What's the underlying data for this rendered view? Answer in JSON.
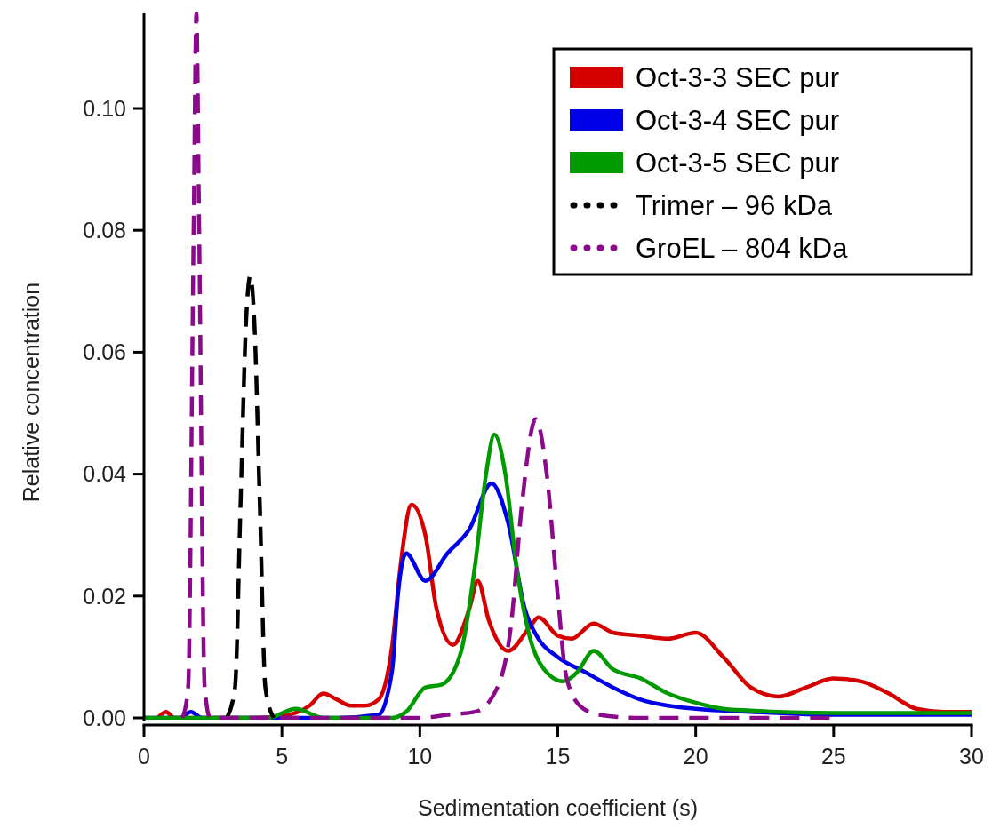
{
  "chart_data": {
    "type": "line",
    "xlabel": "Sedimentation coefficient (s)",
    "ylabel": "Relative concentration",
    "xlim": [
      0,
      30
    ],
    "ylim": [
      0,
      0.1156
    ],
    "xticks": [
      0,
      5,
      10,
      15,
      20,
      25,
      30
    ],
    "yticks": [
      {
        "value": 0,
        "label": "0.00"
      },
      {
        "value": 0.02,
        "label": "0.02"
      },
      {
        "value": 0.04,
        "label": "0.04"
      },
      {
        "value": 0.06,
        "label": "0.06"
      },
      {
        "value": 0.08,
        "label": "0.08"
      },
      {
        "value": 0.1,
        "label": "0.10"
      }
    ],
    "grid": false,
    "legend": "top right",
    "series": [
      {
        "name": "Oct-3-3 SEC pur",
        "color": "#d40000",
        "line_style": "solid",
        "x": [
          0.5,
          0.8,
          1.1,
          2,
          3,
          4,
          5,
          6,
          6.5,
          7,
          7.5,
          8,
          8.5,
          9,
          9.3,
          9.7,
          10.2,
          10.6,
          11.2,
          11.8,
          12.1,
          12.5,
          13.2,
          14,
          14.3,
          15,
          15.5,
          16.3,
          17,
          18,
          19,
          20,
          21,
          22,
          23,
          24,
          25,
          26,
          27,
          28,
          29,
          30
        ],
        "values": [
          0,
          0.001,
          0,
          0,
          0,
          0,
          0.0003,
          0.002,
          0.004,
          0.003,
          0.002,
          0.002,
          0.003,
          0.012,
          0.025,
          0.035,
          0.03,
          0.018,
          0.012,
          0.018,
          0.0225,
          0.016,
          0.011,
          0.015,
          0.0165,
          0.0135,
          0.013,
          0.0155,
          0.014,
          0.0135,
          0.013,
          0.014,
          0.01,
          0.005,
          0.0035,
          0.005,
          0.0065,
          0.006,
          0.004,
          0.0015,
          0.001,
          0.001
        ]
      },
      {
        "name": "Oct-3-4 SEC pur",
        "color": "#0000e6",
        "line_style": "solid",
        "x": [
          0,
          1.3,
          1.7,
          2.1,
          3,
          5,
          7,
          8.5,
          9,
          9.2,
          9.5,
          10.2,
          11,
          11.8,
          12.6,
          13.2,
          13.8,
          14.3,
          15,
          16,
          17,
          18,
          19,
          20,
          22,
          25,
          30
        ],
        "values": [
          0,
          0,
          0.001,
          0,
          0,
          0,
          0,
          0.0005,
          0.008,
          0.02,
          0.027,
          0.0225,
          0.027,
          0.031,
          0.0385,
          0.032,
          0.018,
          0.013,
          0.01,
          0.0075,
          0.005,
          0.003,
          0.002,
          0.0015,
          0.001,
          0.0005,
          0.0005
        ]
      },
      {
        "name": "Oct-3-5 SEC pur",
        "color": "#009a00",
        "line_style": "solid",
        "x": [
          0,
          2,
          4.5,
          5.5,
          6.5,
          8,
          9,
          9.5,
          10.2,
          10.8,
          11.5,
          12,
          12.4,
          12.7,
          13.1,
          13.5,
          14,
          14.5,
          15.2,
          15.7,
          16.3,
          17,
          18,
          19,
          20,
          21,
          22,
          25,
          30
        ],
        "values": [
          0,
          0,
          0,
          0.0015,
          0,
          0,
          0,
          0.001,
          0.005,
          0.0055,
          0.011,
          0.025,
          0.04,
          0.0465,
          0.04,
          0.025,
          0.013,
          0.008,
          0.006,
          0.0075,
          0.011,
          0.008,
          0.0065,
          0.004,
          0.0025,
          0.0015,
          0.0012,
          0.0008,
          0.0008
        ]
      },
      {
        "name": "Trimer – 96 kDa",
        "color": "#000000",
        "line_style": "dashed",
        "x": [
          3,
          3.3,
          3.5,
          3.7,
          3.85,
          4,
          4.2,
          4.4,
          4.7
        ],
        "values": [
          0,
          0.005,
          0.035,
          0.065,
          0.0725,
          0.065,
          0.035,
          0.005,
          0
        ]
      },
      {
        "name": "GroEL – 804 kDa",
        "color": "#8b0a8b",
        "line_style": "dashed",
        "x": [
          1.4,
          1.6,
          1.8,
          1.9,
          2,
          2.2,
          2.4,
          5,
          10,
          11,
          12,
          12.7,
          13.3,
          13.7,
          14.2,
          14.6,
          15,
          15.3,
          15.8,
          16.5,
          18,
          22,
          25
        ],
        "values": [
          0,
          0.005,
          0.08,
          0.1156,
          0.08,
          0.005,
          0,
          0,
          0,
          0.0005,
          0.001,
          0.004,
          0.015,
          0.035,
          0.049,
          0.04,
          0.02,
          0.007,
          0.002,
          0.0005,
          0,
          0,
          0
        ]
      }
    ]
  }
}
